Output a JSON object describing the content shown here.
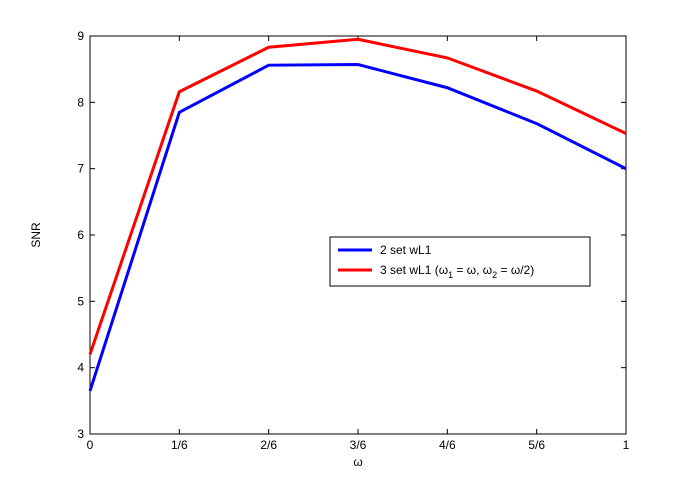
{
  "chart_data": {
    "type": "line",
    "title": "",
    "xlabel": "ω",
    "ylabel": "SNR",
    "x": [
      0,
      0.16667,
      0.33333,
      0.5,
      0.66667,
      0.83333,
      1
    ],
    "x_tick_labels": [
      "0",
      "1/6",
      "2/6",
      "3/6",
      "4/6",
      "5/6",
      "1"
    ],
    "y_ticks": [
      3,
      4,
      5,
      6,
      7,
      8,
      9
    ],
    "xlim": [
      0,
      1
    ],
    "ylim": [
      3,
      9
    ],
    "grid": false,
    "legend_position": "right-center",
    "series": [
      {
        "name": "2 set wL1",
        "color": "#0000ff",
        "values": [
          3.65,
          7.85,
          8.56,
          8.57,
          8.22,
          7.68,
          7.0
        ]
      },
      {
        "name": "3 set wL1 (ω1 = ω, ω2 = ω/2)",
        "legend_rich": [
          "3 set wL1 (ω",
          "1",
          " = ω, ω",
          "2",
          " = ω/2)"
        ],
        "color": "#ff0000",
        "values": [
          4.2,
          8.16,
          8.83,
          8.95,
          8.67,
          8.17,
          7.53
        ]
      }
    ]
  }
}
